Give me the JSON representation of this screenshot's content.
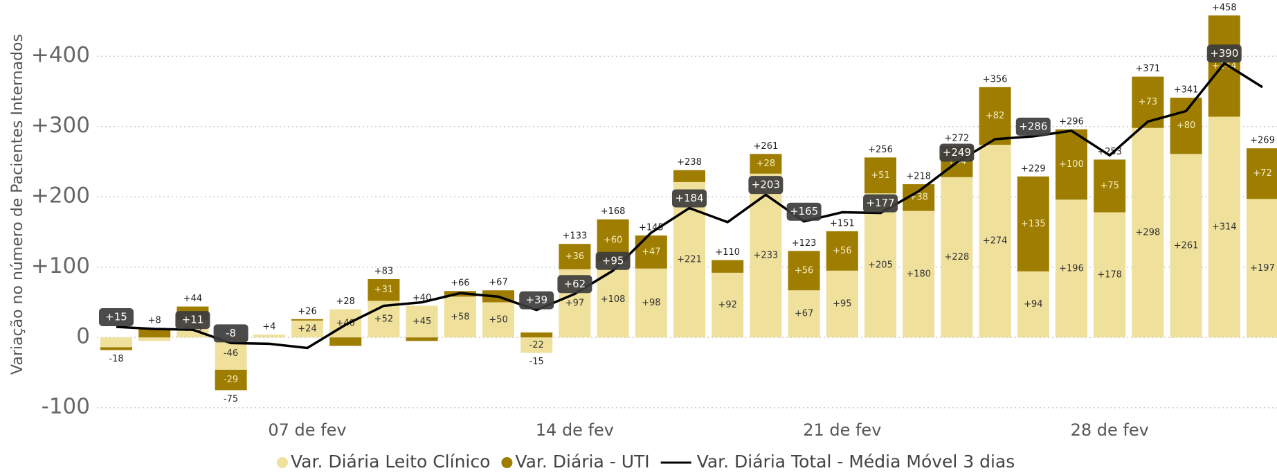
{
  "chart_data": {
    "type": "bar",
    "y_axis_title": "Variação no número de Pacientes Internados",
    "categories": [
      null,
      null,
      null,
      null,
      null,
      "07 de fev",
      null,
      null,
      null,
      null,
      null,
      null,
      "14 de fev",
      null,
      null,
      null,
      null,
      null,
      null,
      "21 de fev",
      null,
      null,
      null,
      null,
      null,
      null,
      "28 de fev",
      null,
      null,
      null,
      null
    ],
    "ylim": [
      -117,
      480
    ],
    "yticks": [
      {
        "value": -100,
        "label": "-100"
      },
      0,
      {
        "value": 100,
        "label": "+100"
      },
      {
        "value": 200,
        "label": "+200"
      },
      {
        "value": 300,
        "label": "+300"
      },
      {
        "value": 400,
        "label": "+400"
      }
    ],
    "grid": true,
    "stacked": true,
    "legend": "bottom",
    "series": [
      {
        "name": "Var. Diária Leito Clínico",
        "color": "#efe09c",
        "type": "bar",
        "values": [
          -14,
          -5,
          25,
          -46,
          4,
          24,
          40,
          52,
          45,
          58,
          50,
          -22,
          97,
          108,
          98,
          221,
          92,
          233,
          67,
          95,
          205,
          180,
          228,
          274,
          94,
          196,
          178,
          298,
          261,
          314,
          197
        ],
        "value_labels": [
          null,
          null,
          "+25",
          "-46",
          null,
          "+24",
          "+40",
          "+52",
          "+45",
          "+58",
          "+50",
          "-22",
          "+97",
          "+108",
          "+98",
          "+221",
          "+92",
          "+233",
          "+67",
          "+95",
          "+205",
          "+180",
          "+228",
          "+274",
          "+94",
          "+196",
          "+178",
          "+298",
          "+261",
          "+314",
          "+197"
        ]
      },
      {
        "name": "Var. Diária - UTI",
        "color": "#9e7d00",
        "type": "bar",
        "values": [
          -4,
          13,
          19,
          -29,
          0,
          2,
          -12,
          31,
          -5,
          8,
          17,
          7,
          36,
          60,
          47,
          17,
          18,
          28,
          56,
          56,
          51,
          38,
          44,
          82,
          135,
          100,
          75,
          73,
          80,
          144,
          72
        ],
        "value_labels": [
          null,
          null,
          null,
          "-29",
          null,
          null,
          null,
          "+31",
          null,
          null,
          null,
          null,
          "+36",
          "+60",
          "+47",
          null,
          null,
          "+28",
          "+56",
          "+56",
          "+51",
          "+38",
          "+44",
          "+82",
          "+135",
          "+100",
          "+75",
          "+73",
          "+80",
          "+144",
          "+72"
        ]
      },
      {
        "name": "Var. Diária Total - Média Móvel 3 dias",
        "color": "#000000",
        "type": "line",
        "values": [
          15,
          12,
          11,
          -8,
          -9,
          -15,
          18,
          45,
          50,
          63,
          58,
          39,
          62,
          95,
          149,
          184,
          164,
          203,
          165,
          178,
          177,
          208,
          249,
          282,
          286,
          294,
          259,
          307,
          322,
          390,
          356
        ],
        "value_labels": [
          "+15",
          null,
          "+11",
          "-8",
          null,
          null,
          null,
          null,
          null,
          null,
          null,
          "+39",
          "+62",
          "+95",
          null,
          "+184",
          null,
          "+203",
          "+165",
          null,
          "+177",
          null,
          "+249",
          null,
          "+286",
          null,
          null,
          null,
          null,
          "+390",
          null
        ]
      }
    ],
    "totals": {
      "values": [
        -18,
        8,
        44,
        -75,
        4,
        26,
        28,
        83,
        40,
        66,
        67,
        -15,
        133,
        168,
        145,
        238,
        110,
        261,
        123,
        151,
        256,
        218,
        272,
        356,
        229,
        296,
        253,
        371,
        341,
        458,
        269
      ],
      "value_labels": [
        "-18",
        "+8",
        "+44",
        "-75",
        "+4",
        "+26",
        "+28",
        "+83",
        "+40",
        "+66",
        "+67",
        "-15",
        "+133",
        "+168",
        "+145",
        "+238",
        "+110",
        "+261",
        "+123",
        "+151",
        "+256",
        "+218",
        "+272",
        "+356",
        "+229",
        "+296",
        "+253",
        "+371",
        "+341",
        "+458",
        "+269"
      ]
    }
  }
}
